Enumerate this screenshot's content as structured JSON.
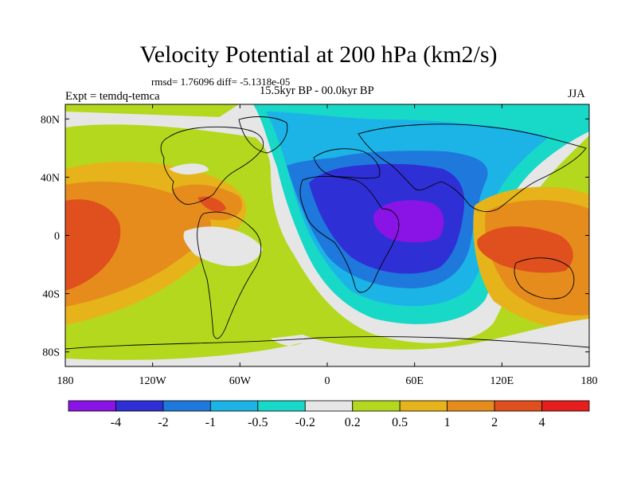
{
  "title": "Velocity Potential at 200 hPa (km2/s)",
  "stats": "rmsd= 1.76096 diff= -5.1318e-05",
  "experiment": "Expt = temdq-temca",
  "period": "15.5kyr BP - 00.0kyr BP",
  "season": "JJA",
  "map": {
    "projection": "cylindrical equidistant",
    "lon_ticks": [
      "180",
      "120W",
      "60W",
      "0",
      "60E",
      "120E",
      "180"
    ],
    "lat_ticks": [
      "80N",
      "40N",
      "0",
      "40S",
      "80S"
    ],
    "lon_values": [
      -180,
      -120,
      -60,
      0,
      60,
      120,
      180
    ],
    "lat_values": [
      80,
      40,
      0,
      -40,
      -80
    ],
    "lon_range": [
      -180,
      180
    ],
    "lat_range": [
      -90,
      90
    ]
  },
  "colorbar": {
    "labels": [
      "-4",
      "-2",
      "-1",
      "-0.5",
      "-0.2",
      "0.2",
      "0.5",
      "1",
      "2",
      "4"
    ],
    "levels": [
      -4,
      -2,
      -1,
      -0.5,
      -0.2,
      0.2,
      0.5,
      1,
      2,
      4
    ],
    "colors": [
      "#8a14e6",
      "#2f2fd6",
      "#1f78dc",
      "#1cb4e6",
      "#18d8c8",
      "#e6e6e6",
      "#b4d81e",
      "#e6b41a",
      "#e68c1c",
      "#e0501e",
      "#e61e1e"
    ]
  }
}
